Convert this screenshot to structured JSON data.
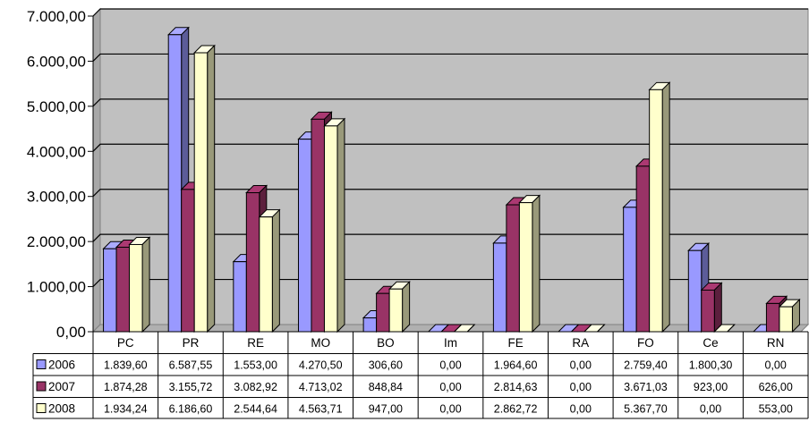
{
  "chart_data": {
    "type": "bar",
    "categories": [
      "PC",
      "PR",
      "RE",
      "MO",
      "BO",
      "Im",
      "FE",
      "RA",
      "FO",
      "Ce",
      "RN"
    ],
    "ylim": [
      0,
      7000
    ],
    "yticks": [
      "0,00",
      "1.000,00",
      "2.000,00",
      "3.000,00",
      "4.000,00",
      "5.000,00",
      "6.000,00",
      "7.000,00"
    ],
    "grid": true,
    "legend": "table-below",
    "series": [
      {
        "name": "2006",
        "color": "#9999ff",
        "values": [
          1839.6,
          6587.55,
          1553.0,
          4270.5,
          306.6,
          0.0,
          1964.6,
          0.0,
          2759.4,
          1800.3,
          0.0
        ],
        "labels": [
          "1.839,60",
          "6.587,55",
          "1.553,00",
          "4.270,50",
          "306,60",
          "0,00",
          "1.964,60",
          "0,00",
          "2.759,40",
          "1.800,30",
          "0,00"
        ]
      },
      {
        "name": "2007",
        "color": "#993366",
        "values": [
          1874.28,
          3155.72,
          3082.92,
          4713.02,
          848.84,
          0.0,
          2814.63,
          0.0,
          3671.03,
          923.0,
          626.0
        ],
        "labels": [
          "1.874,28",
          "3.155,72",
          "3.082,92",
          "4.713,02",
          "848,84",
          "0,00",
          "2.814,63",
          "0,00",
          "3.671,03",
          "923,00",
          "626,00"
        ]
      },
      {
        "name": "2008",
        "color": "#ffffcc",
        "values": [
          1934.24,
          6186.6,
          2544.64,
          4563.71,
          947.0,
          0.0,
          2862.72,
          0.0,
          5367.7,
          0.0,
          553.0
        ],
        "labels": [
          "1.934,24",
          "6.186,60",
          "2.544,64",
          "4.563,71",
          "947,00",
          "0,00",
          "2.862,72",
          "0,00",
          "5.367,70",
          "0,00",
          "553,00"
        ]
      }
    ]
  }
}
